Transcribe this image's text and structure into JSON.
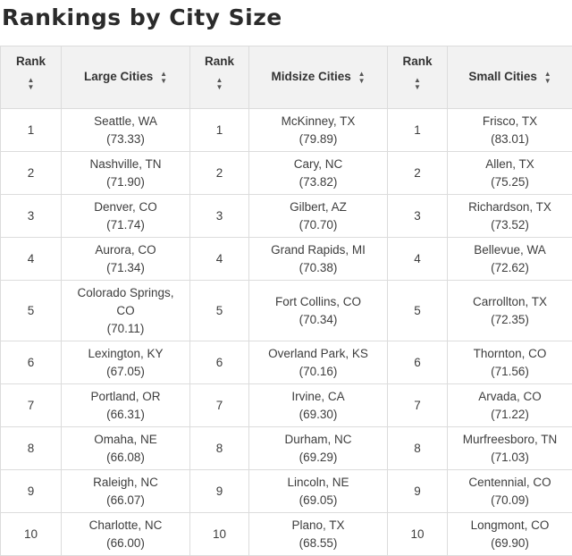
{
  "title": "Rankings by City Size",
  "headers": {
    "rank": "Rank",
    "large": "Large Cities",
    "midsize": "Midsize Cities",
    "small": "Small Cities"
  },
  "sort_icon": "sort-updown-icon",
  "rows": [
    {
      "rank": "1",
      "large": {
        "name": "Seattle, WA",
        "score": "(73.33)"
      },
      "mid": {
        "name": "McKinney, TX",
        "score": "(79.89)"
      },
      "small": {
        "name": "Frisco, TX",
        "score": "(83.01)"
      }
    },
    {
      "rank": "2",
      "large": {
        "name": "Nashville, TN",
        "score": "(71.90)"
      },
      "mid": {
        "name": "Cary, NC",
        "score": "(73.82)"
      },
      "small": {
        "name": "Allen, TX",
        "score": "(75.25)"
      }
    },
    {
      "rank": "3",
      "large": {
        "name": "Denver, CO",
        "score": "(71.74)"
      },
      "mid": {
        "name": "Gilbert, AZ",
        "score": "(70.70)"
      },
      "small": {
        "name": "Richardson, TX",
        "score": "(73.52)"
      }
    },
    {
      "rank": "4",
      "large": {
        "name": "Aurora, CO",
        "score": "(71.34)"
      },
      "mid": {
        "name": "Grand Rapids, MI",
        "score": "(70.38)"
      },
      "small": {
        "name": "Bellevue, WA",
        "score": "(72.62)"
      }
    },
    {
      "rank": "5",
      "large": {
        "name": "Colorado Springs, CO",
        "score": "(70.11)"
      },
      "mid": {
        "name": "Fort Collins, CO",
        "score": "(70.34)"
      },
      "small": {
        "name": "Carrollton, TX",
        "score": "(72.35)"
      }
    },
    {
      "rank": "6",
      "large": {
        "name": "Lexington, KY",
        "score": "(67.05)"
      },
      "mid": {
        "name": "Overland Park, KS",
        "score": "(70.16)"
      },
      "small": {
        "name": "Thornton, CO",
        "score": "(71.56)"
      }
    },
    {
      "rank": "7",
      "large": {
        "name": "Portland, OR",
        "score": "(66.31)"
      },
      "mid": {
        "name": "Irvine, CA",
        "score": "(69.30)"
      },
      "small": {
        "name": "Arvada, CO",
        "score": "(71.22)"
      }
    },
    {
      "rank": "8",
      "large": {
        "name": "Omaha, NE",
        "score": "(66.08)"
      },
      "mid": {
        "name": "Durham, NC",
        "score": "(69.29)"
      },
      "small": {
        "name": "Murfreesboro, TN",
        "score": "(71.03)"
      }
    },
    {
      "rank": "9",
      "large": {
        "name": "Raleigh, NC",
        "score": "(66.07)"
      },
      "mid": {
        "name": "Lincoln, NE",
        "score": "(69.05)"
      },
      "small": {
        "name": "Centennial, CO",
        "score": "(70.09)"
      }
    },
    {
      "rank": "10",
      "large": {
        "name": "Charlotte, NC",
        "score": "(66.00)"
      },
      "mid": {
        "name": "Plano, TX",
        "score": "(68.55)"
      },
      "small": {
        "name": "Longmont, CO",
        "score": "(69.90)"
      }
    }
  ]
}
